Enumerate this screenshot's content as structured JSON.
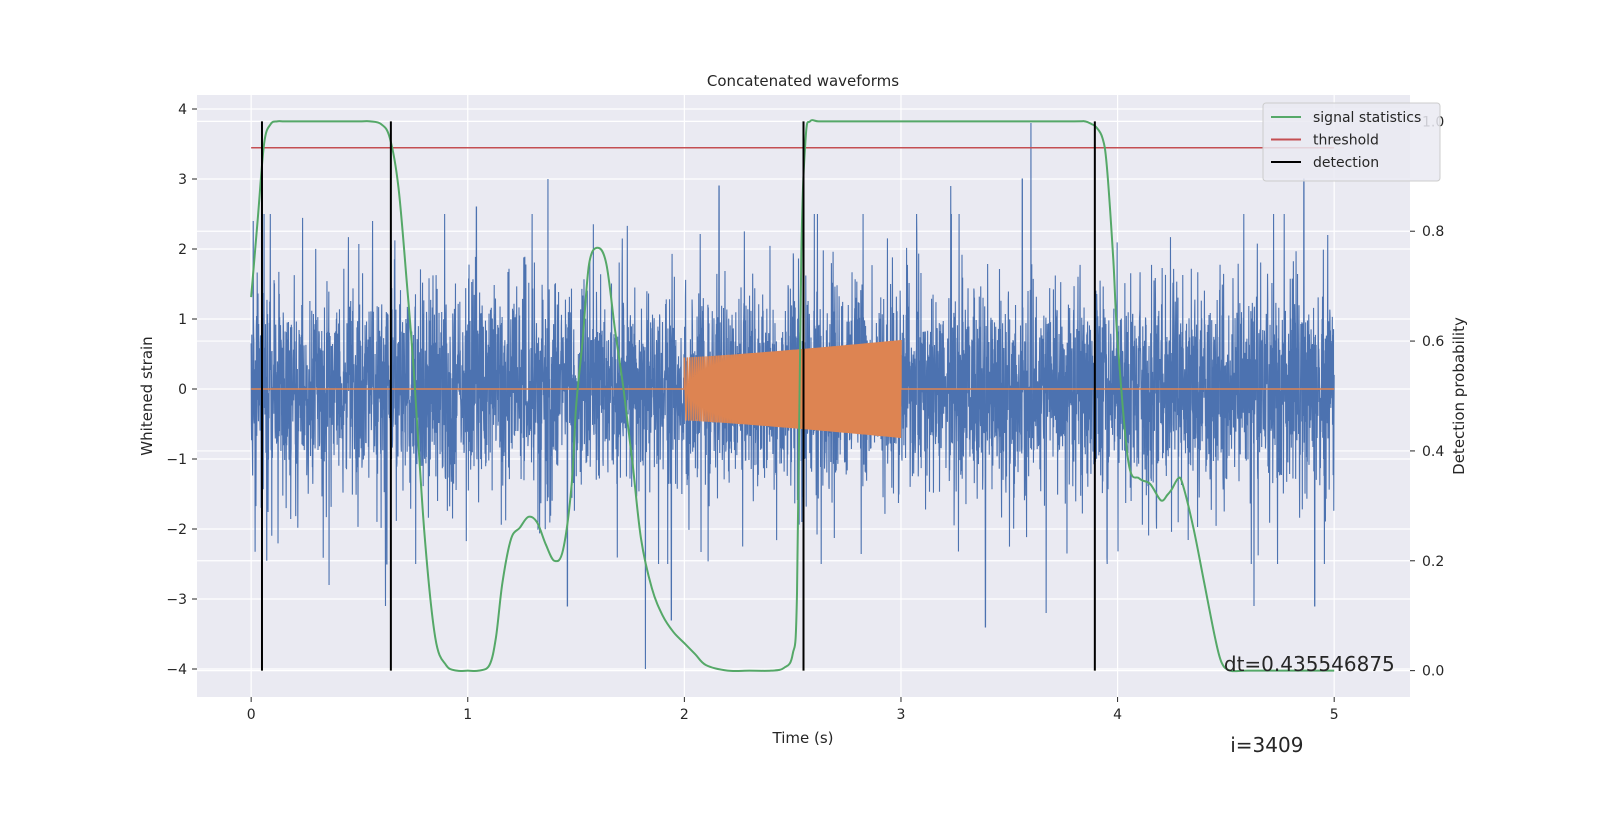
{
  "chart_data": {
    "type": "line",
    "title": "Concatenated waveforms",
    "xlabel": "Time (s)",
    "ylabel": "Whitened strain",
    "y2label": "Detection probability",
    "xlim": [
      -0.25,
      5.35
    ],
    "ylim": [
      -4.4,
      4.2
    ],
    "y2lim": [
      -0.048,
      1.048
    ],
    "xticks": [
      0,
      1,
      2,
      3,
      4,
      5
    ],
    "xtick_labels": [
      "0",
      "1",
      "2",
      "3",
      "4",
      "5"
    ],
    "yticks": [
      -4,
      -3,
      -2,
      -1,
      0,
      1,
      2,
      3,
      4
    ],
    "ytick_labels": [
      "−4",
      "−3",
      "−2",
      "−1",
      "0",
      "1",
      "2",
      "3",
      "4"
    ],
    "y2ticks": [
      0,
      0.2,
      0.4,
      0.6,
      0.8,
      1.0
    ],
    "y2tick_labels": [
      "0.0",
      "0.2",
      "0.4",
      "0.6",
      "0.8",
      "1.0"
    ],
    "grid": true,
    "legend_position": "top-right",
    "series": [
      {
        "role": "strain",
        "axis": "left",
        "color": "#4c72b0",
        "description": "whitened detector noise, approx. std 0.9, peak about 3.8",
        "x_range": [
          0,
          5
        ],
        "amplitude_std": 0.9,
        "peak_values": [
          {
            "x": 0.01,
            "y": 2.4
          },
          {
            "x": 0.06,
            "y": 2.5
          },
          {
            "x": 0.36,
            "y": -2.8
          },
          {
            "x": 0.62,
            "y": -3.1
          },
          {
            "x": 1.04,
            "y": 2.6
          },
          {
            "x": 1.37,
            "y": 3.0
          },
          {
            "x": 1.46,
            "y": -3.1
          },
          {
            "x": 1.82,
            "y": -4.0
          },
          {
            "x": 1.94,
            "y": -3.3
          },
          {
            "x": 2.16,
            "y": 2.9
          },
          {
            "x": 2.6,
            "y": 2.5
          },
          {
            "x": 3.23,
            "y": 2.9
          },
          {
            "x": 3.39,
            "y": -3.4
          },
          {
            "x": 3.56,
            "y": 3.0
          },
          {
            "x": 3.6,
            "y": 3.8
          },
          {
            "x": 3.67,
            "y": -3.2
          },
          {
            "x": 4.63,
            "y": -3.1
          },
          {
            "x": 4.86,
            "y": 3.0
          },
          {
            "x": 4.91,
            "y": -3.1
          },
          {
            "x": 4.97,
            "y": 2.2
          }
        ]
      },
      {
        "role": "injected-signal",
        "axis": "left",
        "color": "#dd8452",
        "description": "chirp signal injected between 2 and 3 s, zero elsewhere",
        "x_range": [
          0,
          5
        ],
        "chirp_start": 2.0,
        "chirp_end": 3.0,
        "amplitude_start": 0.45,
        "amplitude_end": 0.7
      },
      {
        "name": "signal statistics",
        "axis": "right",
        "color": "#55a868",
        "x": [
          0.0,
          0.03,
          0.06,
          0.09,
          0.12,
          0.15,
          0.2,
          0.3,
          0.4,
          0.5,
          0.55,
          0.6,
          0.64,
          0.68,
          0.72,
          0.75,
          0.8,
          0.85,
          0.9,
          0.95,
          1.0,
          1.05,
          1.1,
          1.13,
          1.16,
          1.2,
          1.24,
          1.28,
          1.32,
          1.36,
          1.4,
          1.44,
          1.48,
          1.5,
          1.53,
          1.56,
          1.6,
          1.64,
          1.68,
          1.72,
          1.76,
          1.8,
          1.85,
          1.9,
          1.95,
          2.0,
          2.05,
          2.1,
          2.2,
          2.3,
          2.4,
          2.46,
          2.5,
          2.52,
          2.54,
          2.56,
          2.58,
          2.62,
          2.7,
          2.8,
          3.0,
          3.5,
          3.8,
          3.85,
          3.88,
          3.9,
          3.93,
          3.95,
          3.98,
          4.0,
          4.05,
          4.1,
          4.15,
          4.2,
          4.23,
          4.25,
          4.28,
          4.3,
          4.35,
          4.4,
          4.45,
          4.48,
          4.52,
          4.6,
          4.8,
          5.0
        ],
        "values": [
          0.68,
          0.82,
          0.96,
          0.995,
          1.0,
          1.0,
          1.0,
          1.0,
          1.0,
          1.0,
          1.0,
          0.995,
          0.97,
          0.88,
          0.7,
          0.55,
          0.25,
          0.06,
          0.01,
          0.0,
          0.0,
          0.0,
          0.01,
          0.06,
          0.16,
          0.24,
          0.26,
          0.28,
          0.27,
          0.23,
          0.2,
          0.22,
          0.34,
          0.48,
          0.6,
          0.74,
          0.77,
          0.74,
          0.62,
          0.51,
          0.38,
          0.24,
          0.15,
          0.1,
          0.07,
          0.05,
          0.03,
          0.01,
          0.0,
          0.0,
          0.0,
          0.005,
          0.03,
          0.14,
          0.76,
          0.97,
          1.0,
          1.0,
          1.0,
          1.0,
          1.0,
          1.0,
          1.0,
          1.0,
          0.995,
          0.99,
          0.97,
          0.92,
          0.75,
          0.6,
          0.38,
          0.35,
          0.34,
          0.31,
          0.32,
          0.33,
          0.35,
          0.34,
          0.26,
          0.16,
          0.06,
          0.015,
          0.0,
          0.0,
          0.0,
          0.0
        ]
      },
      {
        "name": "threshold",
        "axis": "right",
        "color": "#c44e52",
        "x": [
          0,
          5
        ],
        "values": [
          0.952,
          0.952
        ]
      },
      {
        "name": "detection",
        "axis": "right",
        "color": "#000000",
        "description": "vertical detection markers spanning 0 to 1",
        "x": [
          0.05,
          0.645,
          2.55,
          3.895
        ]
      }
    ],
    "annotation": {
      "dt_text": "dt=0.435546875",
      "i_text": " i=3409",
      "x": 4.5,
      "y": -3.1
    }
  }
}
